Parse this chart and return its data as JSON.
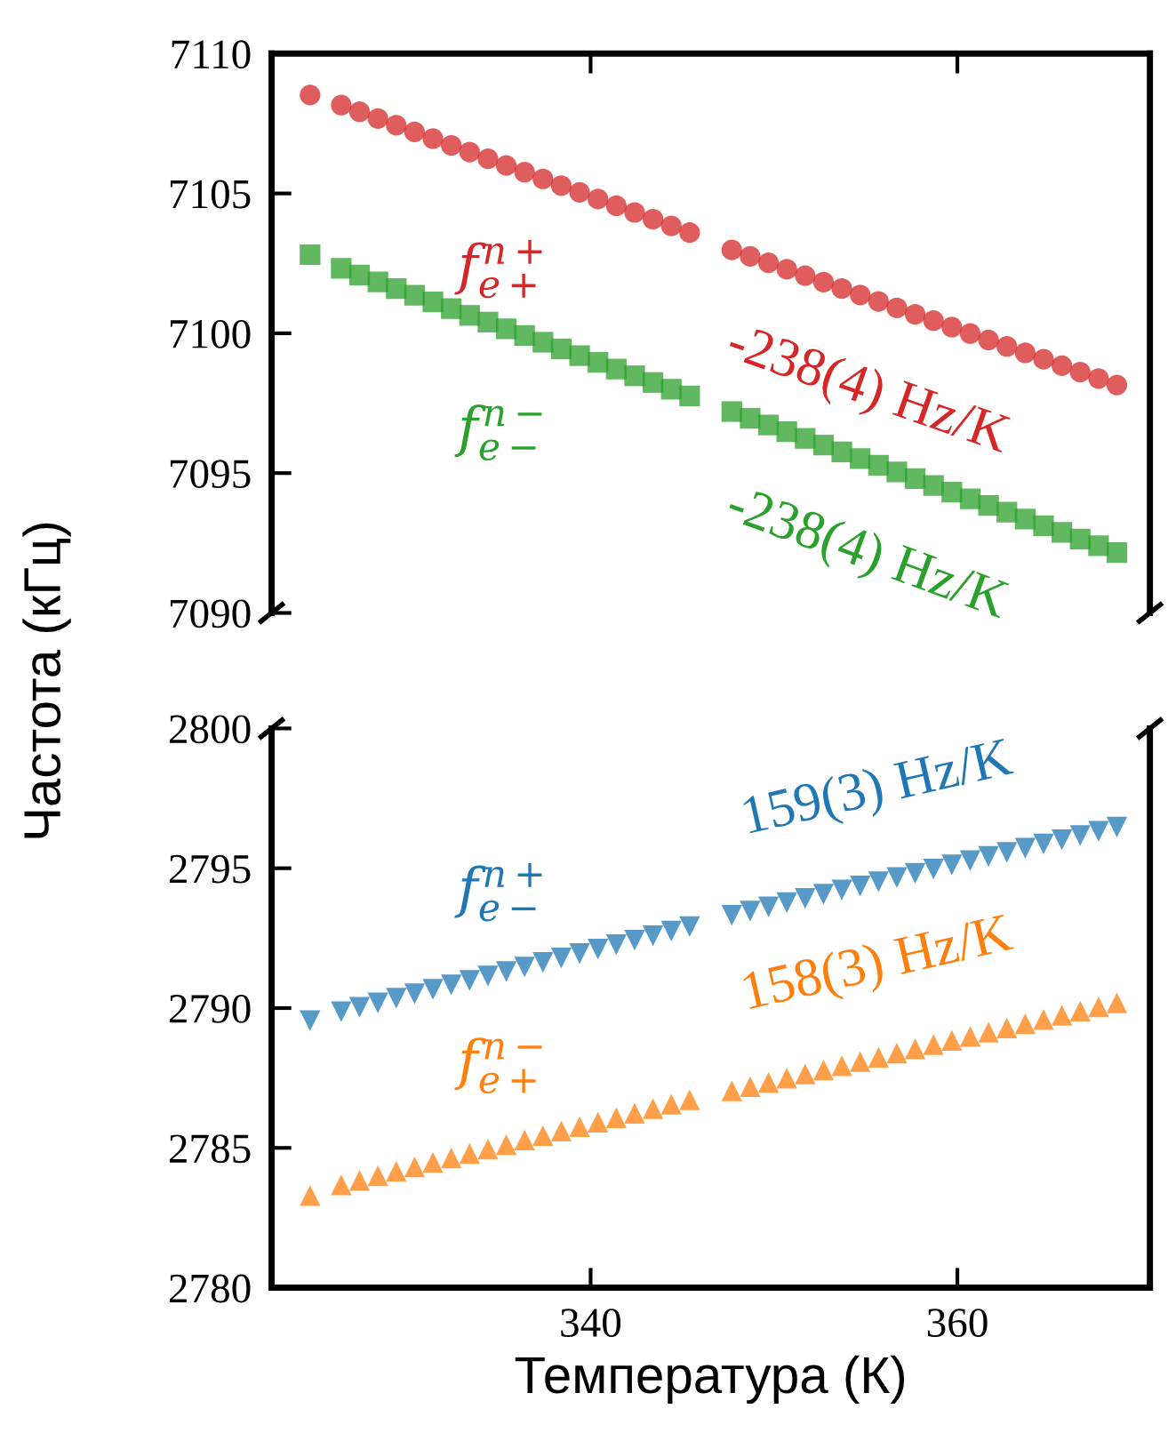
{
  "chart_data": [
    {
      "type": "scatter",
      "ylabel": "Частота (кГц)",
      "xlim": [
        322.6,
        370.5
      ],
      "xticks": [
        340,
        360
      ],
      "ylim": [
        7090,
        7110
      ],
      "yticks": [
        7090,
        7095,
        7100,
        7105,
        7110
      ],
      "tick_labels": "y",
      "grid": false,
      "legend": false,
      "x": [
        324.7,
        326.4,
        327.4,
        328.4,
        329.4,
        330.4,
        331.4,
        332.4,
        333.4,
        334.4,
        335.4,
        336.4,
        337.4,
        338.4,
        339.4,
        340.4,
        341.4,
        342.4,
        343.4,
        344.4,
        345.4,
        347.7,
        348.7,
        349.7,
        350.7,
        351.7,
        352.7,
        353.7,
        354.7,
        355.7,
        356.7,
        357.7,
        358.7,
        359.7,
        360.7,
        361.7,
        362.7,
        363.7,
        364.7,
        365.7,
        366.7,
        367.7,
        368.7
      ],
      "series": [
        {
          "name": "f$^{n+}$$_{e+}$",
          "color": "#d62728",
          "marker": "circle",
          "values": [
            7108.52,
            7108.16,
            7107.92,
            7107.68,
            7107.44,
            7107.2,
            7106.96,
            7106.72,
            7106.48,
            7106.24,
            7106.0,
            7105.76,
            7105.52,
            7105.28,
            7105.04,
            7104.8,
            7104.56,
            7104.32,
            7104.08,
            7103.84,
            7103.6,
            7102.98,
            7102.75,
            7102.52,
            7102.29,
            7102.06,
            7101.83,
            7101.6,
            7101.37,
            7101.14,
            7100.91,
            7100.68,
            7100.45,
            7100.22,
            7099.99,
            7099.76,
            7099.53,
            7099.3,
            7099.07,
            7098.84,
            7098.61,
            7098.38,
            7098.15
          ]
        },
        {
          "name": "f$^{n−}$$_{e−}$",
          "color": "#2ca02c",
          "marker": "square",
          "values": [
            7102.81,
            7102.32,
            7102.08,
            7101.84,
            7101.6,
            7101.36,
            7101.12,
            7100.88,
            7100.64,
            7100.4,
            7100.16,
            7099.92,
            7099.68,
            7099.44,
            7099.2,
            7098.96,
            7098.72,
            7098.48,
            7098.24,
            7098.0,
            7097.76,
            7097.2,
            7096.96,
            7096.72,
            7096.48,
            7096.24,
            7096.0,
            7095.76,
            7095.52,
            7095.28,
            7095.04,
            7094.8,
            7094.56,
            7094.32,
            7094.08,
            7093.84,
            7093.6,
            7093.36,
            7093.12,
            7092.88,
            7092.64,
            7092.4,
            7092.16
          ]
        }
      ],
      "annotations": [
        "-238(4) Hz/K",
        "-238(4) Hz/K"
      ]
    },
    {
      "type": "scatter",
      "xlabel": "Температура (К)",
      "xlim": [
        322.6,
        370.5
      ],
      "xticks": [
        340,
        360
      ],
      "ylim": [
        2780,
        2800
      ],
      "yticks": [
        2780,
        2785,
        2790,
        2795,
        2800
      ],
      "grid": false,
      "legend": false,
      "x": [
        324.7,
        326.4,
        327.4,
        328.4,
        329.4,
        330.4,
        331.4,
        332.4,
        333.4,
        334.4,
        335.4,
        336.4,
        337.4,
        338.4,
        339.4,
        340.4,
        341.4,
        342.4,
        343.4,
        344.4,
        345.4,
        347.7,
        348.7,
        349.7,
        350.7,
        351.7,
        352.7,
        353.7,
        354.7,
        355.7,
        356.7,
        357.7,
        358.7,
        359.7,
        360.7,
        361.7,
        362.7,
        363.7,
        364.7,
        365.7,
        366.7,
        367.7,
        368.7
      ],
      "series": [
        {
          "name": "f$^{n+}$$_{e−}$",
          "color": "#1f77b4",
          "marker": "triangle-down",
          "values": [
            2789.55,
            2789.87,
            2790.03,
            2790.19,
            2790.35,
            2790.51,
            2790.67,
            2790.83,
            2790.99,
            2791.15,
            2791.31,
            2791.47,
            2791.63,
            2791.79,
            2791.95,
            2792.11,
            2792.27,
            2792.43,
            2792.59,
            2792.75,
            2792.91,
            2793.32,
            2793.47,
            2793.62,
            2793.77,
            2793.92,
            2794.07,
            2794.22,
            2794.37,
            2794.52,
            2794.67,
            2794.82,
            2794.97,
            2795.12,
            2795.27,
            2795.42,
            2795.57,
            2795.72,
            2795.87,
            2796.02,
            2796.17,
            2796.32,
            2796.47
          ]
        },
        {
          "name": "f$^{n−}$$_{e+}$",
          "color": "#ff7f0e",
          "marker": "triangle",
          "values": [
            2783.3,
            2783.68,
            2783.84,
            2784.0,
            2784.16,
            2784.32,
            2784.48,
            2784.64,
            2784.8,
            2784.96,
            2785.12,
            2785.28,
            2785.44,
            2785.6,
            2785.76,
            2785.92,
            2786.08,
            2786.24,
            2786.4,
            2786.56,
            2786.72,
            2787.04,
            2787.19,
            2787.34,
            2787.49,
            2787.64,
            2787.79,
            2787.94,
            2788.09,
            2788.24,
            2788.39,
            2788.54,
            2788.69,
            2788.84,
            2788.99,
            2789.14,
            2789.29,
            2789.44,
            2789.59,
            2789.74,
            2789.89,
            2790.04,
            2790.19
          ]
        }
      ],
      "annotations": [
        "159(3) Hz/K",
        "158(3) Hz/K"
      ]
    }
  ]
}
